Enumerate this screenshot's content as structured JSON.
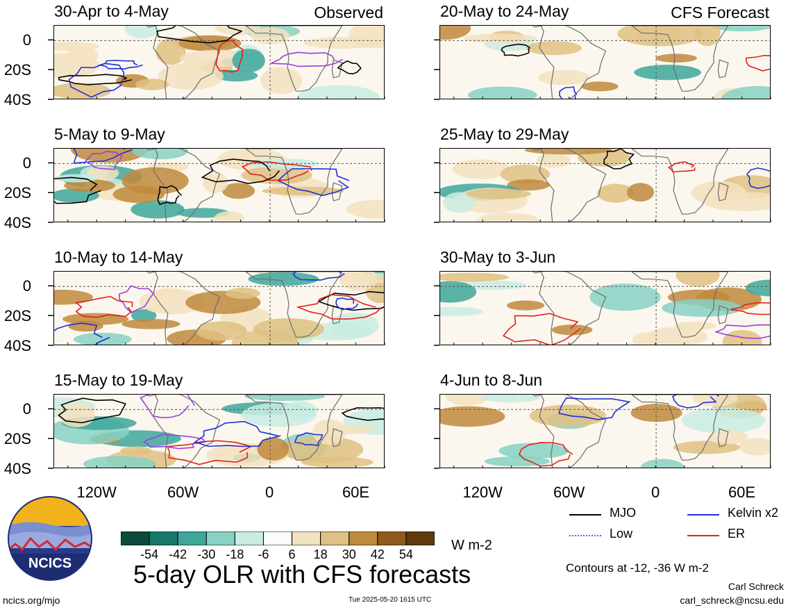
{
  "chart_data": {
    "type": "heatmap",
    "title": "5-day OLR with CFS forecasts",
    "units": "W m-2",
    "x_tick_labels": [
      "120W",
      "60W",
      "0",
      "60E"
    ],
    "y_tick_labels": [
      "0",
      "20S",
      "40S"
    ],
    "xlim": [
      -150,
      80
    ],
    "ylim": [
      -40,
      10
    ],
    "observed_label": "Observed",
    "forecast_label": "CFS Forecast",
    "panels_observed": [
      {
        "period": "30-Apr to 4-May"
      },
      {
        "period": "5-May to 9-May"
      },
      {
        "period": "10-May to 14-May"
      },
      {
        "period": "15-May to 19-May"
      }
    ],
    "panels_forecast": [
      {
        "period": "20-May to 24-May"
      },
      {
        "period": "25-May to 29-May"
      },
      {
        "period": "30-May to 3-Jun"
      },
      {
        "period": "4-Jun to 8-Jun"
      }
    ],
    "colorbar": {
      "ticks": [
        "-54",
        "-42",
        "-30",
        "-18",
        "-6",
        "6",
        "18",
        "30",
        "42",
        "54"
      ],
      "colors": [
        "#0b4a3c",
        "#16786b",
        "#3ea79b",
        "#86d1c3",
        "#c9ece3",
        "#fafafa",
        "#f3e2bf",
        "#dfc183",
        "#c08a3c",
        "#8f5a1c",
        "#5e3a0f"
      ]
    },
    "legend": [
      {
        "label": "MJO",
        "color": "#000000"
      },
      {
        "label": "Kelvin x2",
        "color": "#1f2fd6"
      },
      {
        "label": "Low",
        "color": "#9a3fe0"
      },
      {
        "label": "ER",
        "color": "#e0201f"
      }
    ],
    "contours_note": "Contours at -12, -36 W m-2"
  },
  "footer": {
    "site": "ncics.org/mjo",
    "timestamp": "Tue 2025-05-20 1615 UTC",
    "author": "Carl Schreck",
    "email": "carl_schreck@ncsu.edu",
    "logo_text": "NCICS"
  }
}
